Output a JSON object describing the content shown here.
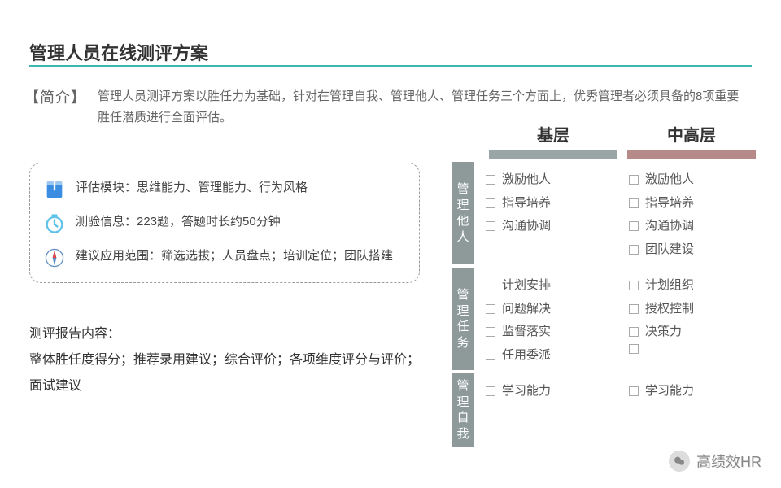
{
  "page_title": "管理人员在线测评方案",
  "intro_label": "【简介】",
  "intro_text": "管理人员测评方案以胜任力为基础，针对在管理自我、管理他人、管理任务三个方面上，优秀管理者必须具备的8项重要胜任潜质进行全面评估。",
  "info_box": {
    "rows": [
      {
        "icon": "book",
        "icon_color": "#3a8de0",
        "text": "评估模块：思维能力、管理能力、行为风格"
      },
      {
        "icon": "clock",
        "icon_color": "#5fc2e8",
        "text": "测验信息：223题，答题时长约50分钟"
      },
      {
        "icon": "compass",
        "icon_color": "#5a8bc4",
        "text": "建议应用范围：筛选选拔；人员盘点；培训定位；团队搭建"
      }
    ]
  },
  "report": {
    "heading": "测评报告内容：",
    "body": "整体胜任度得分；推荐录用建议；综合评价；各项维度评分与评价；面试建议"
  },
  "matrix": {
    "column_headers": [
      "基层",
      "中高层"
    ],
    "bar_colors": [
      "#9aa6a6",
      "#b78a8a"
    ],
    "sections": [
      {
        "label": "管理他人",
        "columns": [
          [
            "激励他人",
            "指导培养",
            "沟通协调"
          ],
          [
            "激励他人",
            "指导培养",
            "沟通协调",
            "团队建设"
          ]
        ]
      },
      {
        "label": "管理任务",
        "columns": [
          [
            "计划安排",
            "问题解决",
            "监督落实",
            "任用委派"
          ],
          [
            "计划组织",
            "授权控制",
            "决策力",
            ""
          ]
        ]
      },
      {
        "label": "管理自我",
        "columns": [
          [
            "学习能力"
          ],
          [
            "学习能力"
          ]
        ]
      }
    ],
    "vlabel_bg": "#8e9a9a"
  },
  "watermark": "高绩效HR",
  "colors": {
    "accent": "#3eb6b0",
    "text": "#333333",
    "muted": "#666666"
  }
}
